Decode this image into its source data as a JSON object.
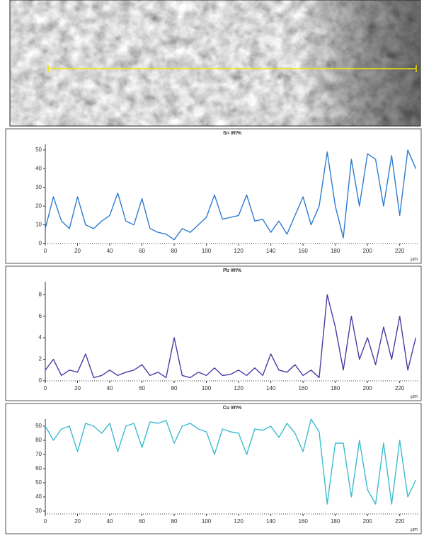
{
  "chart_data": [
    {
      "type": "line",
      "title": "Sn Wt%",
      "xlabel": "µm",
      "color": "#2e7bd0",
      "x": [
        0,
        5,
        10,
        15,
        20,
        25,
        30,
        35,
        40,
        45,
        50,
        55,
        60,
        65,
        70,
        75,
        80,
        85,
        90,
        95,
        100,
        105,
        110,
        115,
        120,
        125,
        130,
        135,
        140,
        145,
        150,
        155,
        160,
        165,
        170,
        175,
        180,
        185,
        190,
        195,
        200,
        205,
        210,
        215,
        220,
        225,
        230
      ],
      "values": [
        8,
        25,
        12,
        8,
        25,
        10,
        8,
        12,
        15,
        27,
        12,
        10,
        24,
        8,
        6,
        5,
        2,
        8,
        6,
        10,
        14,
        26,
        13,
        14,
        15,
        26,
        12,
        13,
        6,
        12,
        5,
        15,
        25,
        10,
        20,
        49,
        20,
        3,
        45,
        20,
        48,
        45,
        20,
        47,
        15,
        50,
        40
      ],
      "xlim": [
        0,
        232
      ],
      "xticks": [
        0,
        20,
        40,
        60,
        80,
        100,
        120,
        140,
        160,
        180,
        200,
        220
      ],
      "ylim": [
        0,
        53
      ],
      "yticks": [
        0,
        10,
        20,
        30,
        40,
        50
      ]
    },
    {
      "type": "line",
      "title": "Pb Wt%",
      "xlabel": "µm",
      "color": "#4b3ba3",
      "x": [
        0,
        5,
        10,
        15,
        20,
        25,
        30,
        35,
        40,
        45,
        50,
        55,
        60,
        65,
        70,
        75,
        80,
        85,
        90,
        95,
        100,
        105,
        110,
        115,
        120,
        125,
        130,
        135,
        140,
        145,
        150,
        155,
        160,
        165,
        170,
        175,
        180,
        185,
        190,
        195,
        200,
        205,
        210,
        215,
        220,
        225,
        230
      ],
      "values": [
        1,
        2,
        0.5,
        1,
        0.8,
        2.5,
        0.3,
        0.5,
        1,
        0.5,
        0.8,
        1,
        1.5,
        0.5,
        0.8,
        0.3,
        4,
        0.5,
        0.3,
        0.8,
        0.5,
        1.2,
        0.5,
        0.6,
        1,
        0.5,
        1.2,
        0.5,
        2.5,
        1,
        0.8,
        1.5,
        0.5,
        1,
        0.3,
        8,
        5,
        1,
        6,
        2,
        4,
        1.5,
        5,
        2,
        6,
        1,
        4
      ],
      "xlim": [
        0,
        232
      ],
      "xticks": [
        0,
        20,
        40,
        60,
        80,
        100,
        120,
        140,
        160,
        180,
        200,
        220
      ],
      "ylim": [
        0,
        9.2
      ],
      "yticks": [
        0,
        2,
        4,
        6,
        8
      ]
    },
    {
      "type": "line",
      "title": "Cu Wt%",
      "xlabel": "µm",
      "color": "#3bbcd0",
      "x": [
        0,
        5,
        10,
        15,
        20,
        25,
        30,
        35,
        40,
        45,
        50,
        55,
        60,
        65,
        70,
        75,
        80,
        85,
        90,
        95,
        100,
        105,
        110,
        115,
        120,
        125,
        130,
        135,
        140,
        145,
        150,
        155,
        160,
        165,
        170,
        175,
        180,
        185,
        190,
        195,
        200,
        205,
        210,
        215,
        220,
        225,
        230
      ],
      "values": [
        90,
        80,
        88,
        90,
        72,
        92,
        90,
        85,
        92,
        72,
        90,
        92,
        75,
        93,
        92,
        94,
        78,
        90,
        92,
        88,
        86,
        70,
        88,
        86,
        85,
        70,
        88,
        87,
        90,
        82,
        92,
        85,
        72,
        95,
        86,
        35,
        78,
        78,
        40,
        80,
        45,
        35,
        78,
        35,
        80,
        40,
        52
      ],
      "xlim": [
        0,
        232
      ],
      "xticks": [
        0,
        20,
        40,
        60,
        80,
        100,
        120,
        140,
        160,
        180,
        200,
        220
      ],
      "ylim": [
        28,
        95
      ],
      "yticks": [
        30,
        40,
        50,
        60,
        70,
        80,
        90
      ]
    }
  ]
}
